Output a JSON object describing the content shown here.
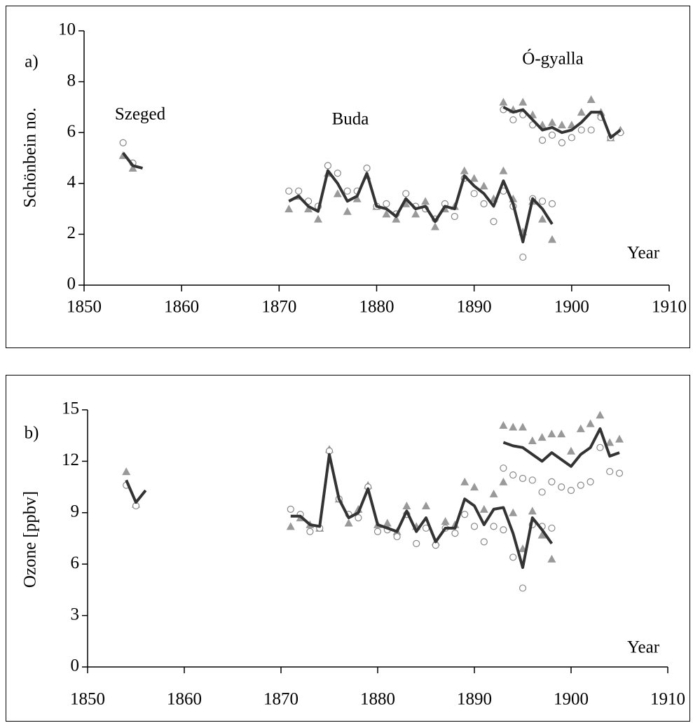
{
  "chart_data": [
    {
      "type": "line",
      "panel_label": "a)",
      "ylabel": "Schönbein no.",
      "xlabel": "Year",
      "annotations": [
        "Szeged",
        "Buda",
        "Ó-gyalla"
      ],
      "xlim": [
        1850,
        1910
      ],
      "xticks": [
        1850,
        1860,
        1870,
        1880,
        1890,
        1900,
        1910
      ],
      "ylim": [
        0,
        10
      ],
      "yticks": [
        0,
        2,
        4,
        6,
        8,
        10
      ],
      "series": [
        {
          "marker": "circle",
          "color": "#888888",
          "x": [
            1854,
            1855
          ],
          "values": [
            5.6,
            4.8
          ]
        },
        {
          "marker": "triangle",
          "color": "#999999",
          "x": [
            1854,
            1855
          ],
          "values": [
            5.1,
            4.6
          ]
        },
        {
          "marker": "line",
          "color": "#333333",
          "x": [
            1854,
            1855,
            1856
          ],
          "values": [
            5.2,
            4.7,
            4.6
          ]
        },
        {
          "marker": "circle",
          "color": "#888888",
          "x": [
            1871,
            1872,
            1873,
            1874,
            1875,
            1876,
            1877,
            1878,
            1879,
            1880,
            1881,
            1882,
            1883,
            1884,
            1885,
            1886,
            1887,
            1888,
            1889,
            1890,
            1891,
            1892,
            1893,
            1894,
            1895,
            1896,
            1897,
            1898
          ],
          "values": [
            3.7,
            3.7,
            3.3,
            3.1,
            4.7,
            4.4,
            3.7,
            3.7,
            4.6,
            3.1,
            3.2,
            2.8,
            3.6,
            3.1,
            3.0,
            2.6,
            3.2,
            2.7,
            4.2,
            3.6,
            3.2,
            2.5,
            3.7,
            3.1,
            1.1,
            3.4,
            3.3,
            3.2
          ]
        },
        {
          "marker": "triangle",
          "color": "#999999",
          "x": [
            1871,
            1872,
            1873,
            1874,
            1875,
            1876,
            1877,
            1878,
            1879,
            1880,
            1881,
            1882,
            1883,
            1884,
            1885,
            1886,
            1887,
            1888,
            1889,
            1890,
            1891,
            1892,
            1893,
            1894,
            1895,
            1896,
            1897,
            1898
          ],
          "values": [
            3.0,
            3.5,
            3.0,
            2.6,
            4.4,
            3.6,
            2.9,
            3.4,
            4.3,
            3.1,
            2.8,
            2.6,
            3.2,
            2.8,
            3.3,
            2.3,
            3.0,
            3.1,
            4.5,
            4.2,
            3.9,
            3.4,
            4.5,
            3.4,
            2.1,
            3.3,
            2.6,
            1.8
          ]
        },
        {
          "marker": "line",
          "color": "#333333",
          "x": [
            1871,
            1872,
            1873,
            1874,
            1875,
            1876,
            1877,
            1878,
            1879,
            1880,
            1881,
            1882,
            1883,
            1884,
            1885,
            1886,
            1887,
            1888,
            1889,
            1890,
            1891,
            1892,
            1893,
            1894,
            1895,
            1896,
            1897,
            1898
          ],
          "values": [
            3.3,
            3.5,
            3.1,
            2.9,
            4.5,
            4.0,
            3.3,
            3.5,
            4.4,
            3.1,
            3.0,
            2.7,
            3.4,
            3.0,
            3.1,
            2.5,
            3.1,
            3.0,
            4.3,
            3.9,
            3.6,
            3.1,
            4.1,
            3.2,
            1.7,
            3.4,
            3.0,
            2.4
          ]
        },
        {
          "marker": "circle",
          "color": "#888888",
          "x": [
            1893,
            1894,
            1895,
            1896,
            1897,
            1898,
            1899,
            1900,
            1901,
            1902,
            1903,
            1904,
            1905
          ],
          "values": [
            6.9,
            6.5,
            6.7,
            6.3,
            5.7,
            5.9,
            5.6,
            5.8,
            6.1,
            6.1,
            6.6,
            5.8,
            6.0
          ]
        },
        {
          "marker": "triangle",
          "color": "#999999",
          "x": [
            1893,
            1894,
            1895,
            1896,
            1897,
            1898,
            1899,
            1900,
            1901,
            1902,
            1903,
            1904,
            1905
          ],
          "values": [
            7.2,
            6.9,
            7.2,
            6.7,
            6.3,
            6.4,
            6.3,
            6.3,
            6.8,
            7.3,
            6.8,
            5.8,
            6.1
          ]
        },
        {
          "marker": "line",
          "color": "#333333",
          "x": [
            1893,
            1894,
            1895,
            1896,
            1897,
            1898,
            1899,
            1900,
            1901,
            1902,
            1903,
            1904,
            1905
          ],
          "values": [
            7.0,
            6.8,
            6.9,
            6.5,
            6.1,
            6.2,
            6.0,
            6.1,
            6.4,
            6.8,
            6.8,
            5.8,
            6.1
          ]
        }
      ]
    },
    {
      "type": "line",
      "panel_label": "b)",
      "ylabel": "Ozone [ppbv]",
      "xlabel": "Year",
      "xlim": [
        1850,
        1910
      ],
      "xticks": [
        1850,
        1860,
        1870,
        1880,
        1890,
        1900,
        1910
      ],
      "ylim": [
        0,
        15
      ],
      "yticks": [
        0,
        3,
        6,
        9,
        12,
        15
      ],
      "series": [
        {
          "marker": "circle",
          "color": "#888888",
          "x": [
            1854,
            1855
          ],
          "values": [
            10.6,
            9.4
          ]
        },
        {
          "marker": "triangle",
          "color": "#999999",
          "x": [
            1854,
            1855
          ],
          "values": [
            11.4,
            9.5
          ]
        },
        {
          "marker": "line",
          "color": "#333333",
          "x": [
            1854,
            1855,
            1856
          ],
          "values": [
            10.9,
            9.6,
            10.3
          ]
        },
        {
          "marker": "circle",
          "color": "#888888",
          "x": [
            1871,
            1872,
            1873,
            1874,
            1875,
            1876,
            1877,
            1878,
            1879,
            1880,
            1881,
            1882,
            1883,
            1884,
            1885,
            1886,
            1887,
            1888,
            1889,
            1890,
            1891,
            1892,
            1893,
            1894,
            1895,
            1896,
            1897,
            1898
          ],
          "values": [
            9.2,
            8.9,
            7.9,
            8.1,
            12.6,
            9.8,
            8.9,
            8.7,
            10.5,
            7.9,
            8.0,
            7.6,
            8.9,
            7.2,
            8.1,
            7.1,
            8.1,
            7.8,
            8.9,
            8.2,
            7.3,
            8.2,
            8.0,
            6.4,
            4.6,
            8.3,
            8.2,
            8.1
          ]
        },
        {
          "marker": "triangle",
          "color": "#999999",
          "x": [
            1871,
            1872,
            1873,
            1874,
            1875,
            1876,
            1877,
            1878,
            1879,
            1880,
            1881,
            1882,
            1883,
            1884,
            1885,
            1886,
            1887,
            1888,
            1889,
            1890,
            1891,
            1892,
            1893,
            1894,
            1895,
            1896,
            1897,
            1898
          ],
          "values": [
            8.2,
            8.7,
            8.3,
            8.1,
            12.7,
            9.8,
            8.4,
            9.2,
            10.6,
            8.3,
            8.4,
            7.9,
            9.4,
            8.2,
            9.4,
            7.3,
            8.5,
            8.3,
            10.8,
            10.5,
            9.2,
            10.1,
            10.8,
            9.0,
            6.9,
            9.1,
            7.7,
            6.3
          ]
        },
        {
          "marker": "line",
          "color": "#333333",
          "x": [
            1871,
            1872,
            1873,
            1874,
            1875,
            1876,
            1877,
            1878,
            1879,
            1880,
            1881,
            1882,
            1883,
            1884,
            1885,
            1886,
            1887,
            1888,
            1889,
            1890,
            1891,
            1892,
            1893,
            1894,
            1895,
            1896,
            1897,
            1898
          ],
          "values": [
            8.8,
            8.8,
            8.3,
            8.2,
            12.4,
            9.8,
            8.7,
            9.0,
            10.4,
            8.3,
            8.1,
            7.9,
            9.1,
            7.9,
            8.7,
            7.3,
            8.1,
            8.1,
            9.8,
            9.4,
            8.3,
            9.2,
            9.3,
            7.8,
            5.8,
            8.7,
            8.0,
            7.2
          ]
        },
        {
          "marker": "circle",
          "color": "#888888",
          "x": [
            1893,
            1894,
            1895,
            1896,
            1897,
            1898,
            1899,
            1900,
            1901,
            1902,
            1903,
            1904,
            1905
          ],
          "values": [
            11.6,
            11.2,
            11.0,
            10.9,
            10.2,
            10.8,
            10.5,
            10.3,
            10.6,
            10.8,
            12.8,
            11.4,
            11.3
          ]
        },
        {
          "marker": "triangle",
          "color": "#999999",
          "x": [
            1893,
            1894,
            1895,
            1896,
            1897,
            1898,
            1899,
            1900,
            1901,
            1902,
            1903,
            1904,
            1905
          ],
          "values": [
            14.1,
            14.0,
            14.0,
            13.2,
            13.4,
            13.6,
            13.6,
            12.6,
            13.9,
            14.2,
            14.7,
            13.1,
            13.3
          ]
        },
        {
          "marker": "line",
          "color": "#333333",
          "x": [
            1893,
            1894,
            1895,
            1896,
            1897,
            1898,
            1899,
            1900,
            1901,
            1902,
            1903,
            1904,
            1905
          ],
          "values": [
            13.1,
            12.9,
            12.8,
            12.4,
            12.0,
            12.5,
            12.1,
            11.7,
            12.4,
            12.8,
            13.9,
            12.3,
            12.5
          ]
        }
      ]
    }
  ]
}
